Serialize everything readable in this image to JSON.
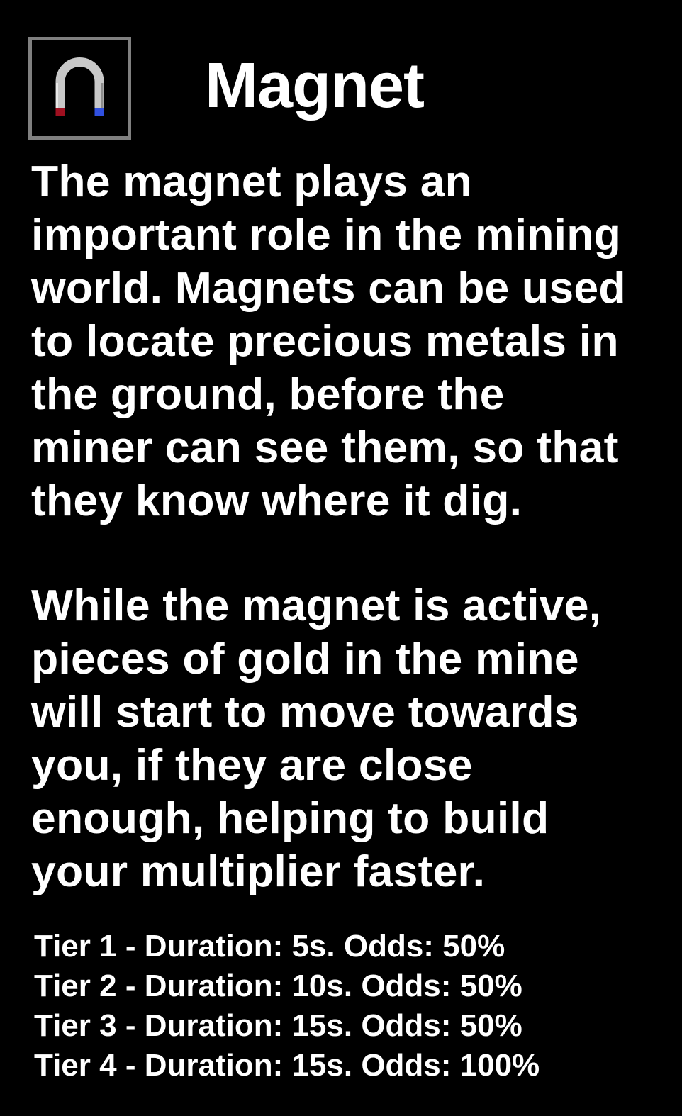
{
  "item": {
    "title": "Magnet",
    "icon": "magnet-icon"
  },
  "description": {
    "paragraph_1": [
      "The magnet plays an",
      "important role in the mining",
      "world. Magnets can be used",
      "to locate precious metals in",
      "the ground, before the",
      "miner can see them, so that",
      "they know where it dig."
    ],
    "paragraph_2": [
      "While the magnet is active,",
      "pieces of gold in the mine",
      "will start to move towards",
      "you, if they are close",
      "enough, helping to build",
      "your multiplier faster."
    ]
  },
  "tiers": [
    "Tier 1 - Duration: 5s. Odds: 50%",
    "Tier 2 - Duration: 10s. Odds: 50%",
    "Tier 3 - Duration: 15s. Odds: 50%",
    "Tier 4 - Duration: 15s. Odds: 100%"
  ],
  "colors": {
    "background": "#000000",
    "text": "#ffffff",
    "frame": "#808080",
    "magnet_body": "#c8c8c8",
    "magnet_red_pole": "#a01020",
    "magnet_blue_pole": "#3050e0"
  }
}
